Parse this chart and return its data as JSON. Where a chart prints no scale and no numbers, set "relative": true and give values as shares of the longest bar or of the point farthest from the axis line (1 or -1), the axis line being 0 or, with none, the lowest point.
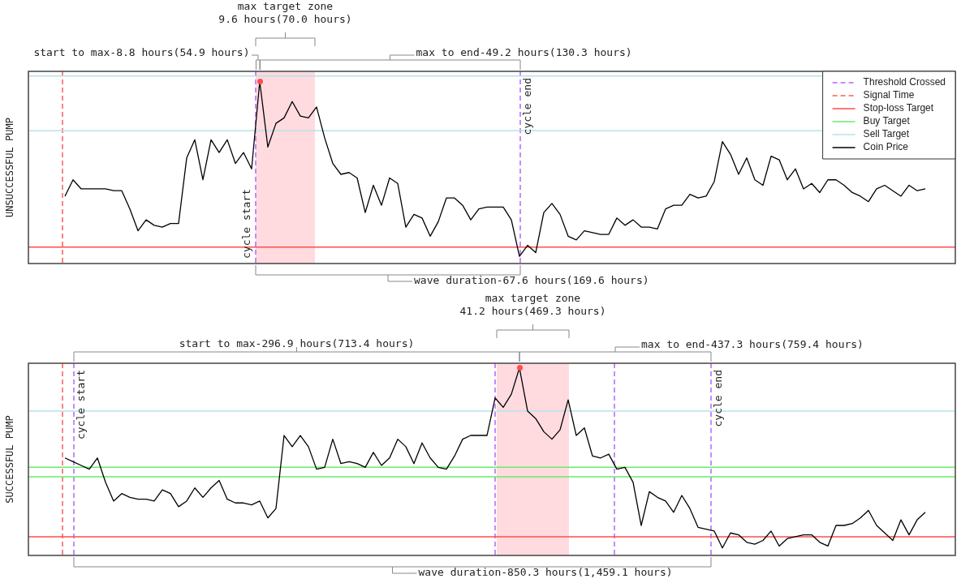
{
  "chart_data": [
    {
      "type": "line",
      "ylabel": "UNSUCCESSFUL PUMP",
      "relative": true,
      "legend": "top right",
      "categories": [
        null,
        null,
        null,
        null,
        null,
        null,
        null,
        null,
        null,
        null,
        null,
        null,
        null,
        null,
        null,
        null,
        null,
        null,
        null,
        null,
        null,
        null,
        null,
        null,
        null,
        null,
        null,
        null,
        null,
        null,
        null,
        null,
        null,
        null,
        null,
        null,
        null,
        null,
        null,
        null,
        null,
        null,
        null,
        null,
        null,
        null,
        null,
        null,
        null,
        null,
        null,
        null,
        null,
        null,
        null,
        null,
        null,
        null,
        null,
        null,
        null,
        null,
        null,
        null,
        null,
        null,
        null,
        null,
        null,
        null,
        null,
        null,
        null,
        null,
        null,
        null,
        null,
        null,
        null,
        null,
        null,
        null,
        null,
        null,
        null,
        null,
        null,
        null,
        null,
        null,
        null,
        null,
        null,
        null,
        null,
        null,
        null,
        null,
        null,
        null,
        null,
        null,
        null,
        null,
        null,
        null,
        null
      ],
      "series": [
        {
          "name": "Coin Price",
          "color": "#000000",
          "values": [
            0.37,
            0.46,
            0.41,
            0.41,
            0.41,
            0.41,
            0.4,
            0.4,
            0.3,
            0.18,
            0.24,
            0.21,
            0.2,
            0.22,
            0.22,
            0.58,
            0.68,
            0.46,
            0.68,
            0.61,
            0.68,
            0.55,
            0.61,
            0.52,
            1,
            0.64,
            0.77,
            0.8,
            0.89,
            0.81,
            0.8,
            0.86,
            0.69,
            0.55,
            0.49,
            0.5,
            0.47,
            0.28,
            0.43,
            0.32,
            0.47,
            0.44,
            0.2,
            0.27,
            0.25,
            0.15,
            0.23,
            0.36,
            0.36,
            0.32,
            0.24,
            0.3,
            0.31,
            0.31,
            0.31,
            0.24,
            0.04,
            0.1,
            0.06,
            0.28,
            0.33,
            0.27,
            0.15,
            0.13,
            0.18,
            0.17,
            0.16,
            0.16,
            0.25,
            0.21,
            0.24,
            0.2,
            0.2,
            0.19,
            0.3,
            0.32,
            0.32,
            0.38,
            0.36,
            0.37,
            0.45,
            0.67,
            0.6,
            0.49,
            0.58,
            0.46,
            0.43,
            0.59,
            0.57,
            0.46,
            0.52,
            0.41,
            0.44,
            0.39,
            0.46,
            0.46,
            0.43,
            0.39,
            0.37,
            0.34,
            0.41,
            0.43,
            0.4,
            0.37,
            0.43,
            0.4,
            0.41
          ]
        }
      ],
      "ref_lines": [
        {
          "axis": "x",
          "label": "Threshold Crossed",
          "color": "#b366ff",
          "line_style": "dashed"
        },
        {
          "axis": "x",
          "color": "#b366ff",
          "line_style": "dashed"
        },
        {
          "axis": "x",
          "label": "Signal Time",
          "color": "#ff5a5a",
          "line_style": "dashed"
        },
        {
          "axis": "y",
          "value": 0.09,
          "label": "Stop-loss Target",
          "color": "#ff4d4d",
          "line_style": "solid"
        },
        {
          "axis": "y",
          "value": null,
          "label": "Buy Target",
          "color": "#66ee66",
          "line_style": "solid"
        },
        {
          "axis": "y",
          "value": 1.03,
          "label": "Sell Target",
          "color": "#b9e0ea",
          "line_style": "solid"
        },
        {
          "axis": "y",
          "value": 0.73,
          "color": "#b9e0ea",
          "line_style": "solid"
        }
      ],
      "annotations": [
        "max target zone\n9.6 hours(70.0 hours)",
        "start to max-8.8 hours(54.9 hours)",
        "max to end-49.2 hours(130.3 hours)",
        "wave duration-67.6 hours(169.6 hours)",
        "cycle start",
        "cycle end"
      ]
    },
    {
      "type": "line",
      "ylabel": "SUCCESSFUL PUMP",
      "relative": true,
      "categories": [
        null,
        null,
        null,
        null,
        null,
        null,
        null,
        null,
        null,
        null,
        null,
        null,
        null,
        null,
        null,
        null,
        null,
        null,
        null,
        null,
        null,
        null,
        null,
        null,
        null,
        null,
        null,
        null,
        null,
        null,
        null,
        null,
        null,
        null,
        null,
        null,
        null,
        null,
        null,
        null,
        null,
        null,
        null,
        null,
        null,
        null,
        null,
        null,
        null,
        null,
        null,
        null,
        null,
        null,
        null,
        null,
        null,
        null,
        null,
        null,
        null,
        null,
        null,
        null,
        null,
        null,
        null,
        null,
        null,
        null,
        null,
        null,
        null,
        null,
        null,
        null,
        null,
        null,
        null,
        null,
        null,
        null,
        null,
        null,
        null,
        null,
        null,
        null,
        null,
        null,
        null,
        null,
        null,
        null,
        null,
        null,
        null,
        null,
        null,
        null,
        null,
        null,
        null,
        null,
        null,
        null,
        null
      ],
      "series": [
        {
          "color": "#000000",
          "values": [
            0.52,
            0.5,
            0.48,
            0.46,
            0.52,
            0.39,
            0.29,
            0.33,
            0.31,
            0.3,
            0.3,
            0.29,
            0.35,
            0.33,
            0.26,
            0.29,
            0.36,
            0.31,
            0.36,
            0.4,
            0.3,
            0.28,
            0.28,
            0.27,
            0.29,
            0.2,
            0.25,
            0.64,
            0.58,
            0.64,
            0.58,
            0.46,
            0.47,
            0.62,
            0.49,
            0.5,
            0.49,
            0.47,
            0.55,
            0.48,
            0.52,
            0.62,
            0.58,
            0.49,
            0.6,
            0.52,
            0.47,
            0.46,
            0.53,
            0.62,
            0.64,
            0.64,
            0.64,
            0.84,
            0.79,
            0.86,
            1,
            0.77,
            0.73,
            0.66,
            0.62,
            0.67,
            0.83,
            0.64,
            0.68,
            0.53,
            0.52,
            0.54,
            0.46,
            0.47,
            0.39,
            0.16,
            0.34,
            0.31,
            0.29,
            0.23,
            0.32,
            0.25,
            0.15,
            0.14,
            0.13,
            0.04,
            0.12,
            0.11,
            0.07,
            0.06,
            0.08,
            0.13,
            0.05,
            0.09,
            0.1,
            0.11,
            0.11,
            0.07,
            0.05,
            0.16,
            0.16,
            0.17,
            0.2,
            0.24,
            0.16,
            0.12,
            0.08,
            0.19,
            0.11,
            0.19,
            0.23
          ]
        }
      ],
      "ref_lines": [
        {
          "axis": "x",
          "color": "#b366ff",
          "line_style": "dashed"
        },
        {
          "axis": "x",
          "color": "#b366ff",
          "line_style": "dashed"
        },
        {
          "axis": "x",
          "color": "#b366ff",
          "line_style": "dashed"
        },
        {
          "axis": "x",
          "color": "#b366ff",
          "line_style": "dashed"
        },
        {
          "axis": "x",
          "color": "#ff5a5a",
          "line_style": "dashed"
        },
        {
          "axis": "y",
          "value": 0.1,
          "color": "#ff4d4d",
          "line_style": "solid"
        },
        {
          "axis": "y",
          "value": 0.47,
          "color": "#66ee66",
          "line_style": "solid"
        },
        {
          "axis": "y",
          "value": 0.42,
          "color": "#66ee66",
          "line_style": "solid"
        },
        {
          "axis": "y",
          "value": 0.77,
          "color": "#b9e0ea",
          "line_style": "solid"
        }
      ],
      "annotations": [
        "max target zone\n41.2 hours(469.3 hours)",
        "start to max-296.9 hours(713.4 hours)",
        "max to end-437.3 hours(759.4 hours)",
        "wave duration-850.3 hours(1,459.1 hours)",
        "cycle start",
        "cycle end"
      ]
    }
  ]
}
